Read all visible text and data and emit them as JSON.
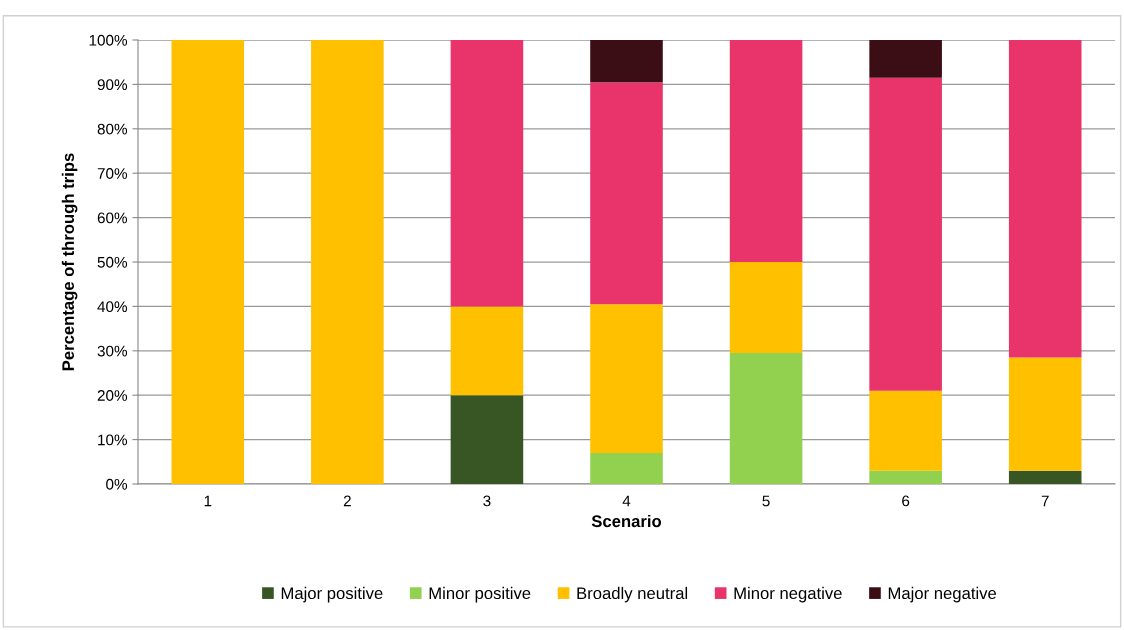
{
  "chart_data": {
    "type": "bar",
    "stacked": true,
    "xlabel": "Scenario",
    "ylabel": "Percentage of through trips",
    "categories": [
      "1",
      "2",
      "3",
      "4",
      "5",
      "6",
      "7"
    ],
    "series": [
      {
        "name": "Major positive",
        "color": "#375623",
        "values": [
          0,
          0,
          20,
          0,
          0,
          0,
          3
        ]
      },
      {
        "name": "Minor positive",
        "color": "#92d050",
        "values": [
          0,
          0,
          0,
          7,
          29.5,
          3,
          0
        ]
      },
      {
        "name": "Broadly neutral",
        "color": "#ffc000",
        "values": [
          100,
          100,
          20,
          33.5,
          20.5,
          18,
          25.5
        ]
      },
      {
        "name": "Minor negative",
        "color": "#e9336b",
        "values": [
          0,
          0,
          60,
          50,
          50,
          70.5,
          71.5
        ]
      },
      {
        "name": "Major negative",
        "color": "#3b0d14",
        "values": [
          0,
          0,
          0,
          9.5,
          0,
          8.5,
          0
        ]
      }
    ],
    "ylim": [
      0,
      100
    ],
    "yticks": [
      {
        "value": 0,
        "label": "0%"
      },
      {
        "value": 10,
        "label": "10%"
      },
      {
        "value": 20,
        "label": "20%"
      },
      {
        "value": 30,
        "label": "30%"
      },
      {
        "value": 40,
        "label": "40%"
      },
      {
        "value": 50,
        "label": "50%"
      },
      {
        "value": 60,
        "label": "60%"
      },
      {
        "value": 70,
        "label": "70%"
      },
      {
        "value": 80,
        "label": "80%"
      },
      {
        "value": 90,
        "label": "90%"
      },
      {
        "value": 100,
        "label": "100%"
      }
    ],
    "grid": "y",
    "legend": "bottom"
  }
}
